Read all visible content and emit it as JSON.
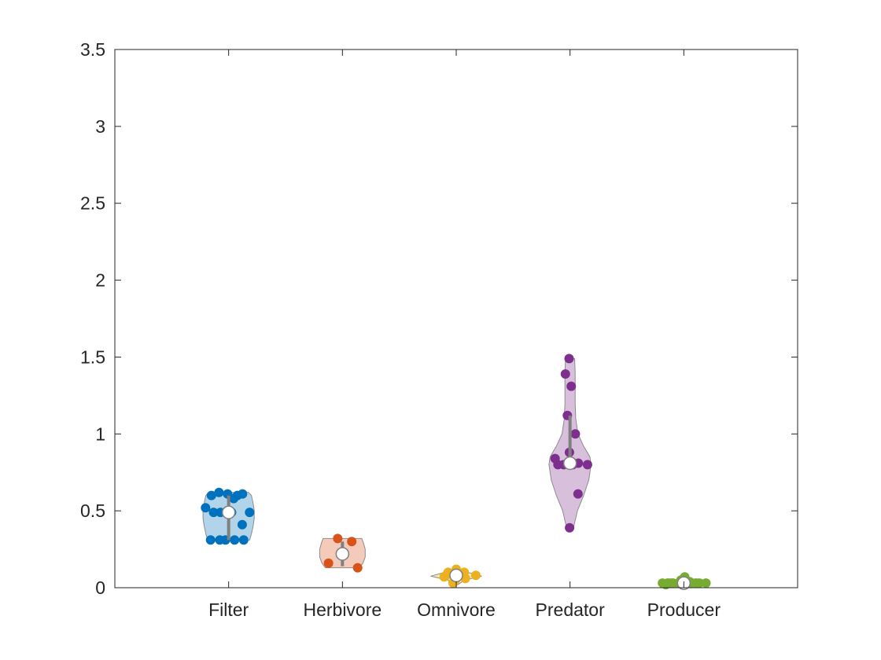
{
  "chart_data": {
    "type": "violin",
    "title": "",
    "xlabel": "",
    "ylabel": "",
    "ylim": [
      0,
      3.5
    ],
    "yticks": [
      0,
      0.5,
      1,
      1.5,
      2,
      2.5,
      3,
      3.5
    ],
    "ytick_labels": [
      "0",
      "0.5",
      "1",
      "1.5",
      "2",
      "2.5",
      "3",
      "3.5"
    ],
    "grid": false,
    "categories": [
      "Filter",
      "Herbivore",
      "Omnivore",
      "Predator",
      "Producer"
    ],
    "series": [
      {
        "category": "Filter",
        "color": "#0072BD",
        "median": 0.49,
        "q1": 0.31,
        "q3": 0.6,
        "min": 0.31,
        "max": 0.62,
        "points": [
          0.52,
          0.58,
          0.62,
          0.61,
          0.61,
          0.6,
          0.6,
          0.49,
          0.49,
          0.49,
          0.49,
          0.41,
          0.31,
          0.31,
          0.31,
          0.31,
          0.31
        ],
        "violin": [
          [
            0.31,
            0.37
          ],
          [
            0.35,
            0.4
          ],
          [
            0.4,
            0.43
          ],
          [
            0.45,
            0.45
          ],
          [
            0.5,
            0.45
          ],
          [
            0.55,
            0.43
          ],
          [
            0.6,
            0.4
          ],
          [
            0.62,
            0.35
          ]
        ]
      },
      {
        "category": "Herbivore",
        "color": "#D95319",
        "median": 0.22,
        "q1": 0.14,
        "q3": 0.3,
        "min": 0.13,
        "max": 0.32,
        "points": [
          0.16,
          0.3,
          0.32,
          0.13
        ],
        "violin": [
          [
            0.13,
            0.3
          ],
          [
            0.16,
            0.36
          ],
          [
            0.2,
            0.4
          ],
          [
            0.25,
            0.4
          ],
          [
            0.29,
            0.37
          ],
          [
            0.32,
            0.34
          ]
        ]
      },
      {
        "category": "Omnivore",
        "color": "#EDB120",
        "median": 0.08,
        "q1": 0.07,
        "q3": 0.09,
        "min": 0.02,
        "max": 0.12,
        "points": [
          0.08,
          0.1,
          0.12,
          0.1,
          0.09,
          0.09,
          0.08,
          0.08,
          0.07,
          0.06,
          0.05,
          0.03,
          0.08
        ],
        "violin": [
          [
            0.02,
            0.03
          ],
          [
            0.05,
            0.15
          ],
          [
            0.075,
            0.45
          ],
          [
            0.09,
            0.3
          ],
          [
            0.11,
            0.1
          ],
          [
            0.12,
            0.03
          ]
        ]
      },
      {
        "category": "Predator",
        "color": "#7E2F8E",
        "median": 0.81,
        "q1": 0.79,
        "q3": 1.12,
        "min": 0.39,
        "max": 1.49,
        "points": [
          1.49,
          1.39,
          1.31,
          1.12,
          1.0,
          0.88,
          0.84,
          0.81,
          0.8,
          0.8,
          0.8,
          0.8,
          0.61,
          0.39
        ],
        "violin": [
          [
            0.39,
            0.06
          ],
          [
            0.5,
            0.13
          ],
          [
            0.6,
            0.24
          ],
          [
            0.7,
            0.33
          ],
          [
            0.8,
            0.37
          ],
          [
            0.85,
            0.35
          ],
          [
            0.92,
            0.24
          ],
          [
            1.0,
            0.14
          ],
          [
            1.1,
            0.1
          ],
          [
            1.2,
            0.09
          ],
          [
            1.3,
            0.09
          ],
          [
            1.4,
            0.09
          ],
          [
            1.49,
            0.08
          ]
        ]
      },
      {
        "category": "Producer",
        "color": "#77AC30",
        "median": 0.03,
        "q1": 0.02,
        "q3": 0.04,
        "min": 0.02,
        "max": 0.07,
        "points": [
          0.03,
          0.03,
          0.03,
          0.03,
          0.03,
          0.03,
          0.03,
          0.03,
          0.02,
          0.02,
          0.04,
          0.05,
          0.07,
          0.03,
          0.03,
          0.03,
          0.03,
          0.03,
          0.03,
          0.03
        ],
        "violin": [
          [
            0.015,
            0.4
          ],
          [
            0.03,
            0.43
          ],
          [
            0.045,
            0.2
          ],
          [
            0.06,
            0.05
          ],
          [
            0.07,
            0.02
          ]
        ]
      }
    ]
  }
}
